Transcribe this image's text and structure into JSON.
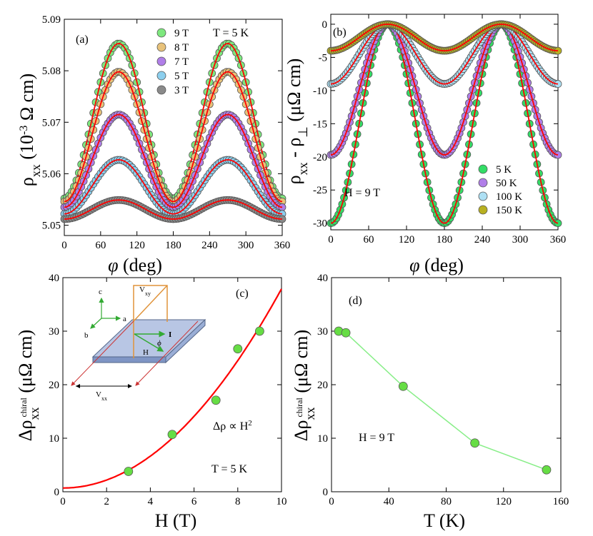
{
  "chart_data": [
    {
      "panel": "(a)",
      "type": "scatter",
      "xlabel": "φ (deg)",
      "ylabel": "ρxx (10-3 Ω cm)",
      "annotation": "T = 5 K",
      "xlim": [
        0,
        360
      ],
      "ylim": [
        5.048,
        5.09
      ],
      "xticks": [
        0,
        60,
        120,
        180,
        240,
        300,
        360
      ],
      "yticks": [
        5.05,
        5.06,
        5.07,
        5.08,
        5.09
      ],
      "legend_position": "top-center",
      "fit_color": "#ff0000",
      "series": [
        {
          "name": "9 T",
          "color": "#7ee87e",
          "base": 5.0552,
          "amp": 0.0301
        },
        {
          "name": "8 T",
          "color": "#e8c27a",
          "base": 5.0546,
          "amp": 0.0252
        },
        {
          "name": "7 T",
          "color": "#b07ee8",
          "base": 5.0535,
          "amp": 0.018
        },
        {
          "name": "5 T",
          "color": "#8ccfee",
          "base": 5.0522,
          "amp": 0.0105
        },
        {
          "name": "3 T",
          "color": "#8a8a8a",
          "base": 5.0512,
          "amp": 0.0037
        }
      ]
    },
    {
      "panel": "(b)",
      "type": "scatter",
      "xlabel": "φ (deg)",
      "ylabel": "ρxx - ρ⊥ (μΩ cm)",
      "annotation": "H = 9 T",
      "xlim": [
        0,
        360
      ],
      "ylim": [
        -31,
        1.5
      ],
      "xticks": [
        0,
        60,
        120,
        180,
        240,
        300,
        360
      ],
      "yticks": [
        -30,
        -25,
        -20,
        -15,
        -10,
        -5,
        0
      ],
      "legend_position": "bottom-right",
      "fit_color": "#ff0000",
      "series": [
        {
          "name": "5 K",
          "color": "#33dd66",
          "min": -30
        },
        {
          "name": "50 K",
          "color": "#b07ee8",
          "min": -19.7
        },
        {
          "name": "100 K",
          "color": "#aee0f4",
          "min": -9
        },
        {
          "name": "150 K",
          "color": "#b8b020",
          "min": -4
        }
      ]
    },
    {
      "panel": "(c)",
      "type": "scatter",
      "xlabel": "H (T)",
      "ylabel": "Δρxxchiral (μΩ cm)",
      "annotation": "T = 5 K",
      "fit_label": "Δρ ∝ H2",
      "xlim": [
        0,
        10
      ],
      "ylim": [
        0,
        40
      ],
      "xticks": [
        0,
        2,
        4,
        6,
        8,
        10
      ],
      "yticks": [
        0,
        10,
        20,
        30,
        40
      ],
      "x": [
        3,
        5,
        7,
        8,
        9
      ],
      "y": [
        3.8,
        10.7,
        17.1,
        26.7,
        30
      ],
      "fit": {
        "a": 0.7,
        "b": 0.372
      },
      "inset_labels": {
        "c": "c",
        "a": "a",
        "b": "b",
        "vxy": "Vxy",
        "vxx": "Vxx",
        "i": "I",
        "h": "H",
        "phi": "ϕ"
      }
    },
    {
      "panel": "(d)",
      "type": "line",
      "xlabel": "T (K)",
      "ylabel": "Δρxxchiral (μΩ cm)",
      "annotation": "H = 9 T",
      "xlim": [
        0,
        160
      ],
      "ylim": [
        0,
        40
      ],
      "xticks": [
        0,
        40,
        80,
        120,
        160
      ],
      "yticks": [
        0,
        10,
        20,
        30,
        40
      ],
      "x": [
        5,
        10,
        50,
        100,
        150
      ],
      "y": [
        30,
        29.7,
        19.7,
        9.1,
        4.1
      ]
    }
  ]
}
